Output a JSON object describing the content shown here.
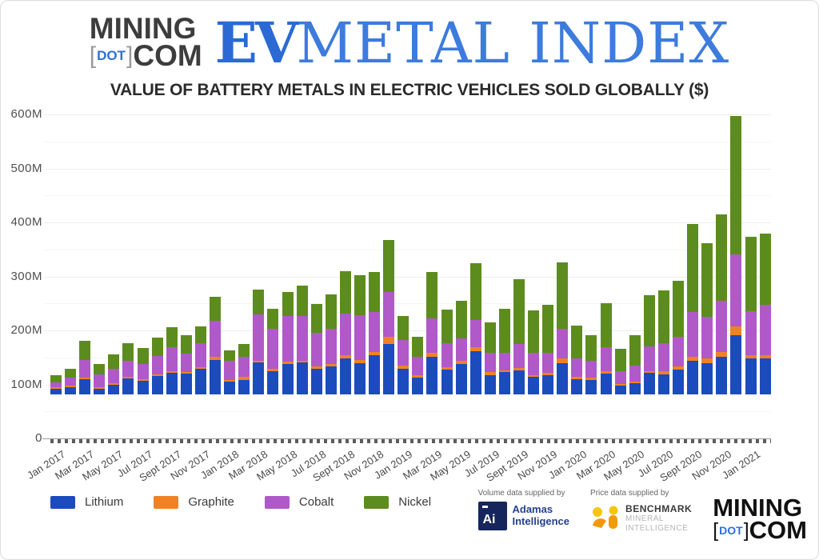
{
  "header": {
    "logo": {
      "mining": "MINING",
      "bracket_open": "[",
      "dot": "DOT",
      "bracket_close": "]",
      "com": "COM"
    },
    "index_title": {
      "ev": "EV",
      "rest": "METAL INDEX"
    }
  },
  "title": "VALUE OF BATTERY METALS IN ELECTRIC VEHICLES SOLD GLOBALLY ($)",
  "chart_data": {
    "type": "bar",
    "stacked": true,
    "title": "VALUE OF BATTERY METALS IN ELECTRIC VEHICLES SOLD GLOBALLY ($)",
    "unit": "millions of dollars",
    "ylim": [
      0,
      600
    ],
    "gridline_step_m": 50,
    "grid": true,
    "legend_position": "bottom-left",
    "y_tick_labels": [
      "600M",
      "500M",
      "400M",
      "300M",
      "200M",
      "100M",
      "0"
    ],
    "x_tick_labels": [
      "Jan 2017",
      "Mar 2017",
      "May 2017",
      "Jul 2017",
      "Sept 2017",
      "Nov 2017",
      "Jan 2018",
      "Mar 2018",
      "May 2018",
      "Jul 2018",
      "Sept 2018",
      "Nov 2018",
      "Jan 2019",
      "Mar 2019",
      "May 2019",
      "Jul 2019",
      "Sept 2019",
      "Nov 2019",
      "Jan 2020",
      "Mar 2020",
      "May 2020",
      "Jul 2020",
      "Sept 2020",
      "Nov 2020",
      "Jan 2021"
    ],
    "categories": [
      "Jan 2017",
      "Feb 2017",
      "Mar 2017",
      "Apr 2017",
      "May 2017",
      "Jun 2017",
      "Jul 2017",
      "Aug 2017",
      "Sept 2017",
      "Oct 2017",
      "Nov 2017",
      "Dec 2017",
      "Jan 2018",
      "Feb 2018",
      "Mar 2018",
      "Apr 2018",
      "May 2018",
      "Jun 2018",
      "Jul 2018",
      "Aug 2018",
      "Sept 2018",
      "Oct 2018",
      "Nov 2018",
      "Dec 2018",
      "Jan 2019",
      "Feb 2019",
      "Mar 2019",
      "Apr 2019",
      "May 2019",
      "Jun 2019",
      "Jul 2019",
      "Aug 2019",
      "Sept 2019",
      "Oct 2019",
      "Nov 2019",
      "Dec 2019",
      "Jan 2020",
      "Feb 2020",
      "Mar 2020",
      "Apr 2020",
      "May 2020",
      "Jun 2020",
      "Jul 2020",
      "Aug 2020",
      "Sept 2020",
      "Oct 2020",
      "Nov 2020",
      "Dec 2020",
      "Jan 2021",
      "Feb 2021"
    ],
    "series": [
      {
        "name": "Lithium",
        "color": "#1c4bbe",
        "values": [
          10,
          14,
          28,
          11,
          18,
          29,
          25,
          34,
          40,
          38,
          48,
          64,
          24,
          27,
          59,
          43,
          57,
          59,
          48,
          52,
          67,
          58,
          72,
          94,
          48,
          31,
          69,
          46,
          56,
          80,
          36,
          41,
          44,
          33,
          36,
          58,
          28,
          26,
          38,
          16,
          21,
          40,
          37,
          46,
          63,
          58,
          69,
          110,
          66,
          67
        ]
      },
      {
        "name": "Graphite",
        "color": "#f08224",
        "values": [
          3,
          2,
          3,
          3,
          3,
          3,
          3,
          3,
          3,
          3,
          3,
          5,
          3,
          5,
          4,
          4,
          4,
          4,
          4,
          4,
          5,
          6,
          6,
          12,
          5,
          5,
          8,
          5,
          6,
          7,
          6,
          4,
          5,
          3,
          4,
          9,
          5,
          5,
          5,
          4,
          2,
          3,
          6,
          6,
          6,
          8,
          10,
          16,
          6,
          6
        ]
      },
      {
        "name": "Cobalt",
        "color": "#b059c8",
        "values": [
          9,
          15,
          33,
          23,
          27,
          31,
          28,
          34,
          44,
          35,
          44,
          68,
          35,
          37,
          85,
          75,
          84,
          83,
          62,
          65,
          77,
          82,
          74,
          84,
          48,
          33,
          64,
          44,
          41,
          51,
          35,
          32,
          45,
          41,
          37,
          54,
          33,
          31,
          44,
          23,
          30,
          46,
          52,
          55,
          84,
          77,
          94,
          133,
          82,
          93
        ]
      },
      {
        "name": "Nickel",
        "color": "#5d8c1e",
        "values": [
          14,
          17,
          36,
          19,
          26,
          32,
          30,
          34,
          38,
          34,
          31,
          44,
          20,
          25,
          46,
          36,
          44,
          55,
          53,
          64,
          79,
          74,
          74,
          96,
          44,
          37,
          85,
          62,
          71,
          105,
          57,
          81,
          120,
          78,
          89,
          123,
          62,
          48,
          82,
          41,
          56,
          95,
          98,
          104,
          162,
          137,
          160,
          256,
          137,
          132
        ]
      }
    ]
  },
  "footer": {
    "volume_label": "Volume data supplied by",
    "price_label": "Price data supplied by",
    "adamas": {
      "mark": "Ai",
      "line1": "Adamas",
      "line2": "Intelligence"
    },
    "benchmark": {
      "line1": "BENCHMARK",
      "line2": "MINERAL",
      "line3": "INTELLIGENCE"
    },
    "mining_logo": {
      "mining": "MINING",
      "bracket_open": "[",
      "dot": "DOT",
      "bracket_close": "]",
      "com": "COM"
    }
  }
}
